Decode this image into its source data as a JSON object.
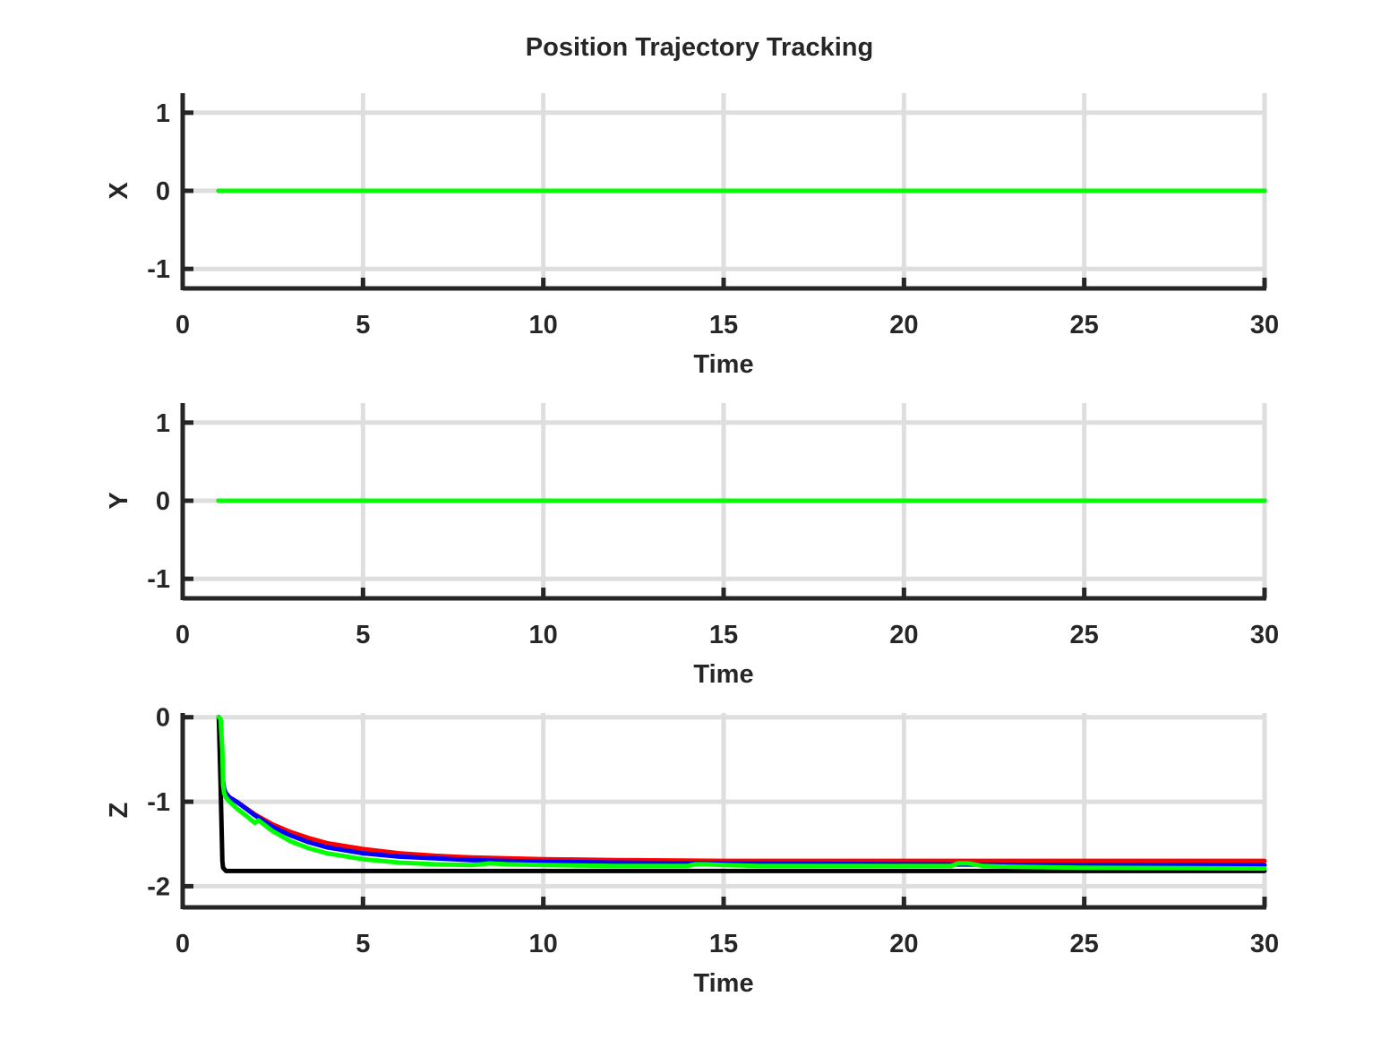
{
  "figure": {
    "title": "Position Trajectory Tracking"
  },
  "chart_data": [
    {
      "type": "line",
      "title": "",
      "xlabel": "Time",
      "ylabel": "X",
      "xlim": [
        0,
        30
      ],
      "ylim": [
        -1.25,
        1.25
      ],
      "xticks": [
        0,
        5,
        10,
        15,
        20,
        25,
        30
      ],
      "yticks": [
        -1,
        0,
        1
      ],
      "ytick_labels": [
        "-1",
        "0",
        "1"
      ],
      "grid": true,
      "series": [
        {
          "color": "#ff0000",
          "x": [
            1,
            30
          ],
          "y": [
            0,
            0
          ]
        },
        {
          "color": "#0000ff",
          "x": [
            1,
            30
          ],
          "y": [
            0,
            0
          ]
        },
        {
          "color": "#000000",
          "x": [
            1,
            30
          ],
          "y": [
            0,
            0
          ]
        },
        {
          "color": "#00ff00",
          "x": [
            1,
            30
          ],
          "y": [
            0,
            0
          ]
        }
      ]
    },
    {
      "type": "line",
      "title": "",
      "xlabel": "Time",
      "ylabel": "Y",
      "xlim": [
        0,
        30
      ],
      "ylim": [
        -1.25,
        1.25
      ],
      "xticks": [
        0,
        5,
        10,
        15,
        20,
        25,
        30
      ],
      "yticks": [
        -1,
        0,
        1
      ],
      "ytick_labels": [
        "-1",
        "0",
        "1"
      ],
      "grid": true,
      "series": [
        {
          "color": "#ff0000",
          "x": [
            1,
            30
          ],
          "y": [
            0,
            0
          ]
        },
        {
          "color": "#0000ff",
          "x": [
            1,
            30
          ],
          "y": [
            0,
            0
          ]
        },
        {
          "color": "#000000",
          "x": [
            1,
            30
          ],
          "y": [
            0,
            0
          ]
        },
        {
          "color": "#00ff00",
          "x": [
            1,
            30
          ],
          "y": [
            0,
            0
          ]
        }
      ]
    },
    {
      "type": "line",
      "title": "",
      "xlabel": "Time",
      "ylabel": "Z",
      "xlim": [
        0,
        30
      ],
      "ylim": [
        -2.25,
        0.05
      ],
      "xticks": [
        0,
        5,
        10,
        15,
        20,
        25,
        30
      ],
      "yticks": [
        -2,
        -1,
        0
      ],
      "ytick_labels": [
        "-2",
        "-1",
        "0"
      ],
      "grid": true,
      "series": [
        {
          "color": "#ff0000",
          "x": [
            1,
            1.02,
            1.06,
            1.1,
            1.15,
            1.2,
            1.3,
            1.5,
            2,
            2.5,
            3,
            3.5,
            4,
            5,
            6,
            7,
            8,
            10,
            12,
            15,
            20,
            25,
            30
          ],
          "y": [
            0,
            -0.02,
            -0.3,
            -0.7,
            -0.85,
            -0.9,
            -0.95,
            -1.0,
            -1.15,
            -1.27,
            -1.36,
            -1.43,
            -1.49,
            -1.56,
            -1.61,
            -1.64,
            -1.66,
            -1.68,
            -1.69,
            -1.7,
            -1.7,
            -1.7,
            -1.7
          ]
        },
        {
          "color": "#0000ff",
          "x": [
            1,
            1.02,
            1.06,
            1.1,
            1.15,
            1.2,
            1.3,
            1.5,
            2,
            2.5,
            3,
            3.5,
            4,
            5,
            6,
            7,
            8,
            10,
            12,
            15,
            20,
            25,
            30
          ],
          "y": [
            0,
            -0.02,
            -0.3,
            -0.7,
            -0.85,
            -0.9,
            -0.95,
            -1.0,
            -1.16,
            -1.3,
            -1.4,
            -1.48,
            -1.54,
            -1.61,
            -1.65,
            -1.67,
            -1.69,
            -1.71,
            -1.72,
            -1.73,
            -1.74,
            -1.75,
            -1.75
          ]
        },
        {
          "color": "#000000",
          "x": [
            1,
            1.05,
            1.1,
            1.12,
            1.2,
            2,
            5,
            10,
            15,
            20,
            25,
            30
          ],
          "y": [
            0,
            -0.8,
            -1.7,
            -1.78,
            -1.82,
            -1.82,
            -1.82,
            -1.82,
            -1.82,
            -1.82,
            -1.82,
            -1.82
          ]
        },
        {
          "color": "#00ff00",
          "x": [
            1,
            1.05,
            1.1,
            1.12,
            1.15,
            1.2,
            1.3,
            1.5,
            1.8,
            2,
            2.1,
            2.5,
            3,
            3.5,
            4,
            5,
            6,
            7,
            8,
            8.3,
            8.5,
            9,
            10,
            12,
            14,
            14.2,
            14.5,
            15,
            16,
            18,
            20,
            21.3,
            21.5,
            21.8,
            22.2,
            23,
            25,
            30
          ],
          "y": [
            0,
            -0.02,
            -0.4,
            -0.8,
            -0.9,
            -0.95,
            -1.0,
            -1.08,
            -1.18,
            -1.25,
            -1.22,
            -1.35,
            -1.47,
            -1.55,
            -1.61,
            -1.68,
            -1.72,
            -1.74,
            -1.75,
            -1.74,
            -1.73,
            -1.74,
            -1.75,
            -1.76,
            -1.76,
            -1.74,
            -1.74,
            -1.75,
            -1.76,
            -1.76,
            -1.76,
            -1.76,
            -1.73,
            -1.73,
            -1.76,
            -1.77,
            -1.78,
            -1.79
          ]
        }
      ]
    }
  ]
}
